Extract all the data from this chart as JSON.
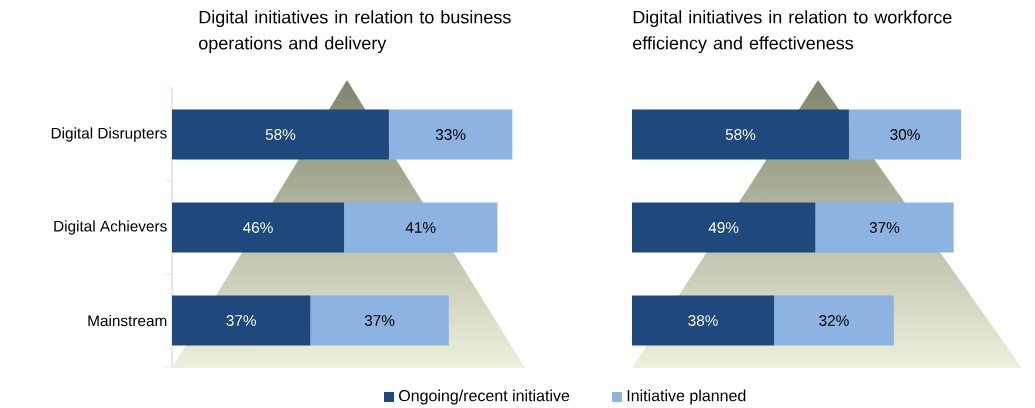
{
  "chart_data": [
    {
      "type": "bar",
      "orientation": "horizontal",
      "stacked": true,
      "title": "Digital initiatives in relation to business operations and delivery",
      "categories": [
        "Digital Disrupters",
        "Digital Achievers",
        "Mainstream"
      ],
      "tick_labels": "y",
      "legend": "bottom",
      "series": [
        {
          "name": "Ongoing/recent initiative",
          "color": "#1f497d",
          "values": [
            58,
            46,
            37
          ],
          "value_labels": [
            "58%",
            "46%",
            "37%"
          ]
        },
        {
          "name": "Initiative planned",
          "color": "#8db3e2",
          "values": [
            33,
            41,
            37
          ],
          "value_labels": [
            "33%",
            "41%",
            "37%"
          ]
        }
      ]
    },
    {
      "type": "bar",
      "orientation": "horizontal",
      "stacked": true,
      "title": "Digital initiatives in relation to workforce efficiency and effectiveness",
      "categories": [
        null,
        null,
        null
      ],
      "tick_labels": false,
      "series": [
        {
          "color": "#1f497d",
          "values": [
            58,
            49,
            38
          ],
          "value_labels": [
            "58%",
            "49%",
            "38%"
          ]
        },
        {
          "color": "#8db3e2",
          "values": [
            30,
            37,
            32
          ],
          "value_labels": [
            "30%",
            "37%",
            "32%"
          ]
        }
      ]
    }
  ]
}
